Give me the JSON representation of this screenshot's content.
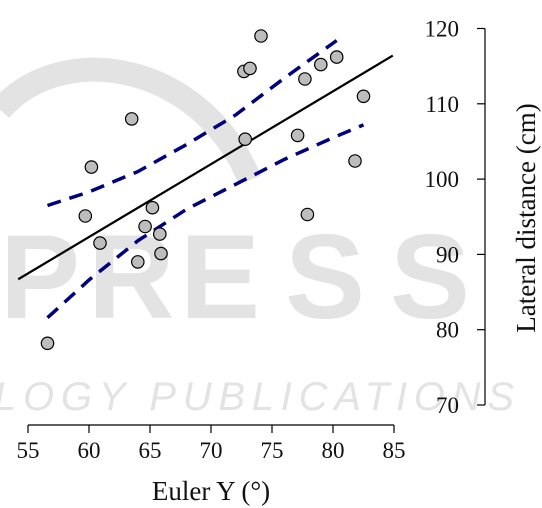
{
  "chart_data": {
    "type": "scatter",
    "xlabel": "Euler Y (°)",
    "ylabel": "Lateral distance (cm)",
    "xlim": [
      54,
      85
    ],
    "ylim": [
      70,
      120
    ],
    "xticks": [
      "55",
      "60",
      "65",
      "70",
      "75",
      "80",
      "85"
    ],
    "yticks": [
      "70",
      "80",
      "90",
      "100",
      "110",
      "120"
    ],
    "y_axis_position": "right",
    "grid": false,
    "points": [
      {
        "x": 56.6,
        "y": 78.2
      },
      {
        "x": 59.7,
        "y": 95.1
      },
      {
        "x": 60.2,
        "y": 101.6
      },
      {
        "x": 60.9,
        "y": 91.5
      },
      {
        "x": 63.5,
        "y": 108.0
      },
      {
        "x": 64.0,
        "y": 89.0
      },
      {
        "x": 64.6,
        "y": 93.7
      },
      {
        "x": 65.2,
        "y": 96.2
      },
      {
        "x": 65.8,
        "y": 92.7
      },
      {
        "x": 65.9,
        "y": 90.1
      },
      {
        "x": 72.7,
        "y": 114.3
      },
      {
        "x": 72.8,
        "y": 105.3
      },
      {
        "x": 73.2,
        "y": 114.7
      },
      {
        "x": 74.1,
        "y": 119.0
      },
      {
        "x": 77.1,
        "y": 105.8
      },
      {
        "x": 77.7,
        "y": 113.3
      },
      {
        "x": 77.9,
        "y": 95.3
      },
      {
        "x": 79.0,
        "y": 115.2
      },
      {
        "x": 80.3,
        "y": 116.2
      },
      {
        "x": 81.8,
        "y": 102.4
      },
      {
        "x": 82.5,
        "y": 111.0
      }
    ],
    "fit_line": {
      "x": [
        54.2,
        84.9
      ],
      "y": [
        86.7,
        116.4
      ],
      "color": "#000000"
    },
    "confidence_band": {
      "color": "#00007f",
      "upper": {
        "x": [
          56.6,
          60,
          64,
          68,
          72,
          76,
          80.3
        ],
        "y": [
          96.5,
          98.3,
          101.0,
          104.6,
          108.5,
          113.4,
          118.4
        ]
      },
      "lower": {
        "x": [
          56.6,
          60,
          64,
          68,
          72,
          76,
          80,
          82.5
        ],
        "y": [
          81.6,
          86.6,
          91.8,
          96.0,
          99.3,
          102.6,
          105.5,
          107.2
        ]
      }
    },
    "point_fill": "#bdbdbd"
  },
  "watermark": {
    "letters": [
      "P",
      "R",
      "E",
      "S",
      "S"
    ],
    "bottom_text": "LOGY PUBLICATIONS",
    "color": "#e3e3e3"
  }
}
